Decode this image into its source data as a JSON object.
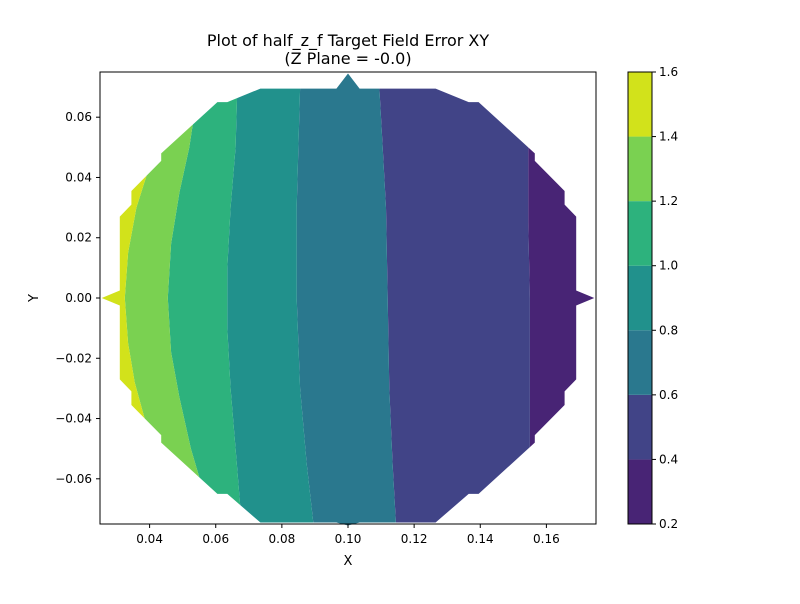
{
  "chart_data": {
    "type": "heatmap",
    "title": "Plot of half_z_f Target Field Error XY",
    "subtitle": "(Z Plane = -0.0)",
    "xlabel": "X",
    "ylabel": "Y",
    "xlim": [
      0.025,
      0.175
    ],
    "ylim": [
      -0.075,
      0.075
    ],
    "x_ticks": [
      {
        "value": 0.04,
        "label": "0.04"
      },
      {
        "value": 0.06,
        "label": "0.06"
      },
      {
        "value": 0.08,
        "label": "0.08"
      },
      {
        "value": 0.1,
        "label": "0.10"
      },
      {
        "value": 0.12,
        "label": "0.12"
      },
      {
        "value": 0.14,
        "label": "0.14"
      },
      {
        "value": 0.16,
        "label": "0.16"
      }
    ],
    "y_ticks": [
      {
        "value": 0.06,
        "label": "0.06"
      },
      {
        "value": 0.04,
        "label": "0.04"
      },
      {
        "value": 0.02,
        "label": "0.02"
      },
      {
        "value": 0.0,
        "label": "0.00"
      },
      {
        "value": -0.02,
        "label": "−0.02"
      },
      {
        "value": -0.04,
        "label": "−0.04"
      },
      {
        "value": -0.06,
        "label": "−0.06"
      }
    ],
    "colorbar": {
      "range": [
        0.2,
        1.6
      ],
      "ticks": [
        {
          "value": 0.2,
          "label": "0.2"
        },
        {
          "value": 0.4,
          "label": "0.4"
        },
        {
          "value": 0.6,
          "label": "0.6"
        },
        {
          "value": 0.8,
          "label": "0.8"
        },
        {
          "value": 1.0,
          "label": "1.0"
        },
        {
          "value": 1.2,
          "label": "1.2"
        },
        {
          "value": 1.4,
          "label": "1.4"
        },
        {
          "value": 1.6,
          "label": "1.6"
        }
      ],
      "levels": [
        {
          "min": 0.2,
          "max": 0.4,
          "color": "#482475"
        },
        {
          "min": 0.4,
          "max": 0.6,
          "color": "#414487"
        },
        {
          "min": 0.6,
          "max": 0.8,
          "color": "#2a788e"
        },
        {
          "min": 0.8,
          "max": 1.0,
          "color": "#21918c"
        },
        {
          "min": 1.0,
          "max": 1.2,
          "color": "#2db27d"
        },
        {
          "min": 1.2,
          "max": 1.4,
          "color": "#7ad151"
        },
        {
          "min": 1.4,
          "max": 1.6,
          "color": "#d2e21b"
        }
      ]
    },
    "domain_outline": [
      [
        0.0255,
        0.0
      ],
      [
        0.031,
        -0.0025
      ],
      [
        0.031,
        -0.027
      ],
      [
        0.0345,
        -0.031
      ],
      [
        0.0345,
        -0.0355
      ],
      [
        0.0435,
        -0.0455
      ],
      [
        0.0435,
        -0.048
      ],
      [
        0.0605,
        -0.065
      ],
      [
        0.0635,
        -0.065
      ],
      [
        0.0735,
        -0.0745
      ],
      [
        0.0965,
        -0.0745
      ],
      [
        0.1,
        -0.0755
      ],
      [
        0.1035,
        -0.0745
      ],
      [
        0.1265,
        -0.0745
      ],
      [
        0.1365,
        -0.065
      ],
      [
        0.1395,
        -0.065
      ],
      [
        0.1565,
        -0.048
      ],
      [
        0.1565,
        -0.0455
      ],
      [
        0.1655,
        -0.0355
      ],
      [
        0.1655,
        -0.031
      ],
      [
        0.169,
        -0.027
      ],
      [
        0.169,
        -0.0025
      ],
      [
        0.1745,
        0.0
      ],
      [
        0.169,
        0.0025
      ],
      [
        0.169,
        0.027
      ],
      [
        0.1655,
        0.031
      ],
      [
        0.1655,
        0.0355
      ],
      [
        0.1565,
        0.0455
      ],
      [
        0.1565,
        0.048
      ],
      [
        0.1395,
        0.065
      ],
      [
        0.1365,
        0.065
      ],
      [
        0.1265,
        0.0695
      ],
      [
        0.1035,
        0.0695
      ],
      [
        0.1,
        0.0745
      ],
      [
        0.0965,
        0.0695
      ],
      [
        0.0735,
        0.0695
      ],
      [
        0.0635,
        0.065
      ],
      [
        0.0605,
        0.065
      ],
      [
        0.0435,
        0.048
      ],
      [
        0.0435,
        0.0455
      ],
      [
        0.0345,
        0.0355
      ],
      [
        0.0345,
        0.031
      ],
      [
        0.031,
        0.027
      ],
      [
        0.031,
        0.0025
      ]
    ],
    "contour_lines": [
      {
        "level": 1.4,
        "points": [
          [
            0.0395,
            0.042
          ],
          [
            0.036,
            0.03
          ],
          [
            0.0335,
            0.015
          ],
          [
            0.0325,
            0.0
          ],
          [
            0.0335,
            -0.015
          ],
          [
            0.0355,
            -0.028
          ],
          [
            0.0385,
            -0.04
          ]
        ]
      },
      {
        "level": 1.2,
        "points": [
          [
            0.0545,
            0.068
          ],
          [
            0.052,
            0.05
          ],
          [
            0.049,
            0.035
          ],
          [
            0.0465,
            0.018
          ],
          [
            0.0455,
            0.0
          ],
          [
            0.0465,
            -0.018
          ],
          [
            0.049,
            -0.033
          ],
          [
            0.0525,
            -0.05
          ],
          [
            0.0565,
            -0.065
          ]
        ]
      },
      {
        "level": 1.0,
        "points": [
          [
            0.0665,
            0.068
          ],
          [
            0.066,
            0.05
          ],
          [
            0.0645,
            0.03
          ],
          [
            0.0635,
            0.01
          ],
          [
            0.0635,
            -0.01
          ],
          [
            0.0645,
            -0.03
          ],
          [
            0.066,
            -0.05
          ],
          [
            0.0675,
            -0.07
          ]
        ]
      },
      {
        "level": 0.8,
        "points": [
          [
            0.0855,
            0.0695
          ],
          [
            0.085,
            0.05
          ],
          [
            0.0845,
            0.03
          ],
          [
            0.0845,
            0.0
          ],
          [
            0.0855,
            -0.03
          ],
          [
            0.0875,
            -0.055
          ],
          [
            0.0895,
            -0.0745
          ]
        ]
      },
      {
        "level": 0.6,
        "points": [
          [
            0.1095,
            0.0695
          ],
          [
            0.1105,
            0.05
          ],
          [
            0.1115,
            0.03
          ],
          [
            0.112,
            0.0
          ],
          [
            0.1125,
            -0.03
          ],
          [
            0.1135,
            -0.055
          ],
          [
            0.1145,
            -0.0745
          ]
        ]
      },
      {
        "level": 0.4,
        "points": [
          [
            0.1545,
            0.05
          ],
          [
            0.1545,
            0.025
          ],
          [
            0.155,
            0.0
          ],
          [
            0.155,
            -0.025
          ],
          [
            0.155,
            -0.046
          ]
        ]
      }
    ]
  }
}
